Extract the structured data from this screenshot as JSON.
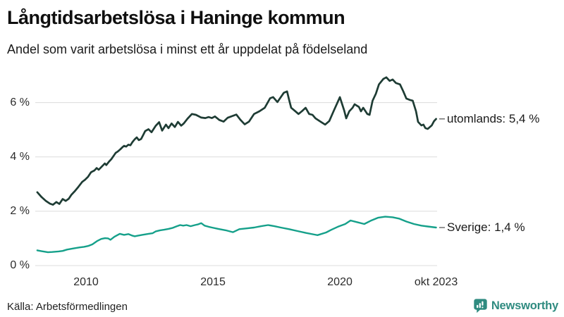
{
  "title": "Långtidsarbetslösa i Haninge kommun",
  "subtitle": "Andel som varit arbetslösa i minst ett år uppdelat på födelseland",
  "source": "Källa: Arbetsförmedlingen",
  "branding": {
    "name": "Newsworthy",
    "icon": "newsworthy-chart-bubble-icon",
    "brand_color": "#2f8b80"
  },
  "chart_data": {
    "type": "line",
    "title": "Långtidsarbetslösa i Haninge kommun",
    "subtitle": "Andel som varit arbetslösa i minst ett år uppdelat på födelseland",
    "x_unit": "decimal_year",
    "xlim": [
      2008.0,
      2023.83
    ],
    "ylim": [
      0,
      7.08
    ],
    "grid": "horizontal",
    "grid_color": "#dcdcdc",
    "legend_position": "right-end-labels",
    "y_ticks": [
      {
        "value": 0,
        "label": "0 %"
      },
      {
        "value": 2,
        "label": "2 %"
      },
      {
        "value": 4,
        "label": "4 %"
      },
      {
        "value": 6,
        "label": "6 %"
      }
    ],
    "x_ticks": [
      {
        "value": 2010.0,
        "label": "2010"
      },
      {
        "value": 2015.0,
        "label": "2015"
      },
      {
        "value": 2020.0,
        "label": "2020"
      },
      {
        "value": 2023.79,
        "label": "okt 2023"
      }
    ],
    "series": [
      {
        "name": "utomlands",
        "end_label": "utomlands: 5,4 %",
        "last_value_text": "5,4 %",
        "color": "#1e3c34",
        "points": [
          [
            2008.08,
            2.7
          ],
          [
            2008.25,
            2.52
          ],
          [
            2008.42,
            2.38
          ],
          [
            2008.58,
            2.28
          ],
          [
            2008.7,
            2.24
          ],
          [
            2008.83,
            2.34
          ],
          [
            2008.95,
            2.27
          ],
          [
            2009.08,
            2.45
          ],
          [
            2009.2,
            2.38
          ],
          [
            2009.32,
            2.46
          ],
          [
            2009.42,
            2.6
          ],
          [
            2009.55,
            2.73
          ],
          [
            2009.7,
            2.9
          ],
          [
            2009.85,
            3.08
          ],
          [
            2009.96,
            3.16
          ],
          [
            2010.08,
            3.27
          ],
          [
            2010.2,
            3.44
          ],
          [
            2010.33,
            3.5
          ],
          [
            2010.42,
            3.59
          ],
          [
            2010.5,
            3.53
          ],
          [
            2010.62,
            3.64
          ],
          [
            2010.74,
            3.76
          ],
          [
            2010.8,
            3.7
          ],
          [
            2010.9,
            3.82
          ],
          [
            2011.0,
            3.92
          ],
          [
            2011.08,
            4.03
          ],
          [
            2011.17,
            4.15
          ],
          [
            2011.25,
            4.2
          ],
          [
            2011.35,
            4.28
          ],
          [
            2011.45,
            4.37
          ],
          [
            2011.5,
            4.41
          ],
          [
            2011.58,
            4.38
          ],
          [
            2011.67,
            4.45
          ],
          [
            2011.75,
            4.43
          ],
          [
            2011.83,
            4.55
          ],
          [
            2011.92,
            4.65
          ],
          [
            2012.0,
            4.72
          ],
          [
            2012.08,
            4.62
          ],
          [
            2012.17,
            4.66
          ],
          [
            2012.25,
            4.8
          ],
          [
            2012.33,
            4.95
          ],
          [
            2012.46,
            5.02
          ],
          [
            2012.58,
            4.91
          ],
          [
            2012.75,
            5.15
          ],
          [
            2012.88,
            5.28
          ],
          [
            2013.0,
            4.97
          ],
          [
            2013.15,
            5.19
          ],
          [
            2013.25,
            5.06
          ],
          [
            2013.37,
            5.23
          ],
          [
            2013.5,
            5.1
          ],
          [
            2013.62,
            5.29
          ],
          [
            2013.75,
            5.15
          ],
          [
            2013.85,
            5.23
          ],
          [
            2014.0,
            5.41
          ],
          [
            2014.17,
            5.58
          ],
          [
            2014.33,
            5.55
          ],
          [
            2014.54,
            5.45
          ],
          [
            2014.7,
            5.43
          ],
          [
            2014.83,
            5.47
          ],
          [
            2014.96,
            5.43
          ],
          [
            2015.08,
            5.49
          ],
          [
            2015.25,
            5.36
          ],
          [
            2015.42,
            5.3
          ],
          [
            2015.58,
            5.44
          ],
          [
            2015.75,
            5.5
          ],
          [
            2015.92,
            5.56
          ],
          [
            2016.08,
            5.37
          ],
          [
            2016.25,
            5.2
          ],
          [
            2016.42,
            5.3
          ],
          [
            2016.62,
            5.58
          ],
          [
            2016.83,
            5.68
          ],
          [
            2017.04,
            5.81
          ],
          [
            2017.25,
            6.16
          ],
          [
            2017.37,
            6.2
          ],
          [
            2017.54,
            6.02
          ],
          [
            2017.79,
            6.36
          ],
          [
            2017.92,
            6.41
          ],
          [
            2018.0,
            6.1
          ],
          [
            2018.08,
            5.81
          ],
          [
            2018.21,
            5.71
          ],
          [
            2018.37,
            5.58
          ],
          [
            2018.5,
            5.68
          ],
          [
            2018.65,
            5.81
          ],
          [
            2018.79,
            5.58
          ],
          [
            2018.92,
            5.55
          ],
          [
            2019.04,
            5.42
          ],
          [
            2019.25,
            5.29
          ],
          [
            2019.42,
            5.19
          ],
          [
            2019.58,
            5.32
          ],
          [
            2019.75,
            5.68
          ],
          [
            2020.0,
            6.2
          ],
          [
            2020.17,
            5.71
          ],
          [
            2020.25,
            5.42
          ],
          [
            2020.37,
            5.68
          ],
          [
            2020.5,
            5.81
          ],
          [
            2020.58,
            5.94
          ],
          [
            2020.75,
            5.84
          ],
          [
            2020.83,
            5.68
          ],
          [
            2020.92,
            5.81
          ],
          [
            2021.08,
            5.58
          ],
          [
            2021.17,
            5.55
          ],
          [
            2021.29,
            6.07
          ],
          [
            2021.42,
            6.33
          ],
          [
            2021.54,
            6.67
          ],
          [
            2021.71,
            6.87
          ],
          [
            2021.83,
            6.93
          ],
          [
            2021.96,
            6.8
          ],
          [
            2022.08,
            6.85
          ],
          [
            2022.21,
            6.72
          ],
          [
            2022.37,
            6.67
          ],
          [
            2022.5,
            6.41
          ],
          [
            2022.62,
            6.15
          ],
          [
            2022.75,
            6.1
          ],
          [
            2022.87,
            6.07
          ],
          [
            2023.0,
            5.68
          ],
          [
            2023.08,
            5.29
          ],
          [
            2023.21,
            5.16
          ],
          [
            2023.29,
            5.19
          ],
          [
            2023.37,
            5.06
          ],
          [
            2023.46,
            5.03
          ],
          [
            2023.62,
            5.16
          ],
          [
            2023.71,
            5.32
          ],
          [
            2023.79,
            5.4
          ]
        ]
      },
      {
        "name": "Sverige",
        "end_label": "Sverige: 1,4 %",
        "last_value_text": "1,4 %",
        "color": "#15a08a",
        "points": [
          [
            2008.08,
            0.56
          ],
          [
            2008.25,
            0.53
          ],
          [
            2008.5,
            0.49
          ],
          [
            2008.67,
            0.5
          ],
          [
            2008.92,
            0.52
          ],
          [
            2009.08,
            0.54
          ],
          [
            2009.25,
            0.59
          ],
          [
            2009.5,
            0.63
          ],
          [
            2009.75,
            0.67
          ],
          [
            2009.92,
            0.69
          ],
          [
            2010.08,
            0.72
          ],
          [
            2010.25,
            0.78
          ],
          [
            2010.45,
            0.91
          ],
          [
            2010.6,
            0.98
          ],
          [
            2010.75,
            1.01
          ],
          [
            2010.87,
            1.0
          ],
          [
            2010.96,
            0.95
          ],
          [
            2011.12,
            1.06
          ],
          [
            2011.33,
            1.17
          ],
          [
            2011.5,
            1.13
          ],
          [
            2011.67,
            1.16
          ],
          [
            2011.83,
            1.1
          ],
          [
            2011.92,
            1.08
          ],
          [
            2012.04,
            1.1
          ],
          [
            2012.21,
            1.13
          ],
          [
            2012.46,
            1.17
          ],
          [
            2012.62,
            1.19
          ],
          [
            2012.75,
            1.26
          ],
          [
            2012.92,
            1.3
          ],
          [
            2013.08,
            1.32
          ],
          [
            2013.25,
            1.35
          ],
          [
            2013.42,
            1.39
          ],
          [
            2013.58,
            1.45
          ],
          [
            2013.71,
            1.49
          ],
          [
            2013.83,
            1.47
          ],
          [
            2013.96,
            1.49
          ],
          [
            2014.12,
            1.45
          ],
          [
            2014.29,
            1.49
          ],
          [
            2014.42,
            1.52
          ],
          [
            2014.54,
            1.56
          ],
          [
            2014.67,
            1.47
          ],
          [
            2014.83,
            1.43
          ],
          [
            2014.96,
            1.4
          ],
          [
            2015.21,
            1.35
          ],
          [
            2015.5,
            1.3
          ],
          [
            2015.79,
            1.23
          ],
          [
            2016.04,
            1.34
          ],
          [
            2016.33,
            1.37
          ],
          [
            2016.62,
            1.4
          ],
          [
            2016.9,
            1.45
          ],
          [
            2017.17,
            1.49
          ],
          [
            2017.42,
            1.45
          ],
          [
            2017.67,
            1.4
          ],
          [
            2018.0,
            1.34
          ],
          [
            2018.33,
            1.27
          ],
          [
            2018.67,
            1.2
          ],
          [
            2019.0,
            1.14
          ],
          [
            2019.12,
            1.12
          ],
          [
            2019.46,
            1.22
          ],
          [
            2019.67,
            1.32
          ],
          [
            2019.92,
            1.43
          ],
          [
            2020.21,
            1.53
          ],
          [
            2020.42,
            1.66
          ],
          [
            2020.67,
            1.6
          ],
          [
            2020.96,
            1.53
          ],
          [
            2021.21,
            1.65
          ],
          [
            2021.5,
            1.76
          ],
          [
            2021.79,
            1.8
          ],
          [
            2022.08,
            1.78
          ],
          [
            2022.33,
            1.73
          ],
          [
            2022.62,
            1.62
          ],
          [
            2022.92,
            1.53
          ],
          [
            2023.21,
            1.47
          ],
          [
            2023.46,
            1.44
          ],
          [
            2023.79,
            1.4
          ]
        ]
      }
    ]
  }
}
